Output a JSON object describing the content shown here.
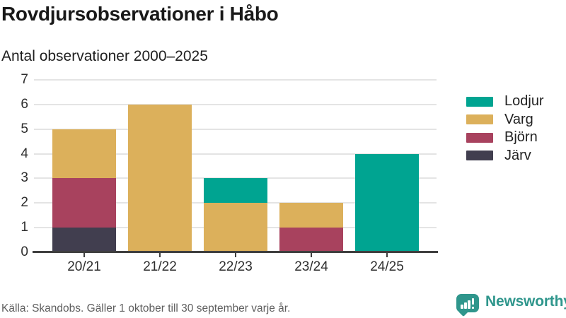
{
  "title": "Rovdjursobservationer i Håbo",
  "subtitle": "Antal observationer 2000–2025",
  "footer": {
    "source": "Källa: Skandobs. Gäller 1 oktober till 30 september varje år."
  },
  "branding": {
    "name": "Newsworthy",
    "logo_icon": "bar-chart-speech-bubble-icon",
    "color": "#2f968c"
  },
  "colors": {
    "lodjur": "#00a491",
    "varg": "#dcb05b",
    "bjorn": "#a8425e",
    "jarv": "#413e4f",
    "axis": "#3f3f3f",
    "grid": "#e4e4e4"
  },
  "chart_data": {
    "type": "bar",
    "stacked": true,
    "title": "Rovdjursobservationer i Håbo",
    "subtitle": "Antal observationer 2000–2025",
    "categories": [
      "20/21",
      "21/22",
      "22/23",
      "23/24",
      "24/25"
    ],
    "series": [
      {
        "name": "Lodjur",
        "color": "#00a491",
        "values": [
          0,
          0,
          1,
          0,
          4
        ]
      },
      {
        "name": "Varg",
        "color": "#dcb05b",
        "values": [
          2,
          6,
          2,
          1,
          0
        ]
      },
      {
        "name": "Björn",
        "color": "#a8425e",
        "values": [
          2,
          0,
          0,
          1,
          0
        ]
      },
      {
        "name": "Järv",
        "color": "#413e4f",
        "values": [
          1,
          0,
          0,
          0,
          0
        ]
      }
    ],
    "stack_order_bottom_to_top": [
      "Järv",
      "Björn",
      "Varg",
      "Lodjur"
    ],
    "totals": [
      5,
      6,
      3,
      2,
      4
    ],
    "ylim": [
      0,
      7
    ],
    "yticks": [
      0,
      1,
      2,
      3,
      4,
      5,
      6,
      7
    ],
    "xlabel": "",
    "ylabel": "",
    "grid": "horizontal",
    "legend_position": "right",
    "legend": [
      "Lodjur",
      "Varg",
      "Björn",
      "Järv"
    ]
  }
}
